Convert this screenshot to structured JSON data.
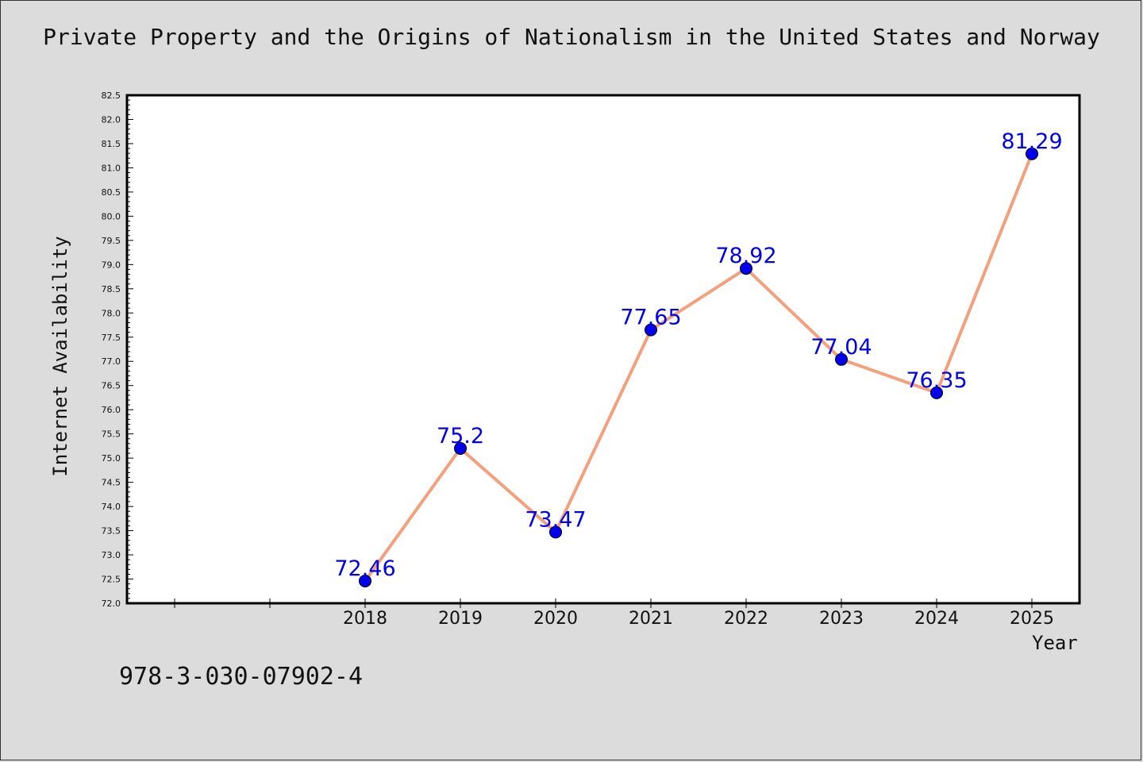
{
  "chart_data": {
    "type": "line",
    "title": "Private Property and the Origins of Nationalism in the United States and Norway",
    "xlabel": "Year",
    "ylabel": "Internet Availability",
    "categories": [
      "2018",
      "2019",
      "2020",
      "2021",
      "2022",
      "2023",
      "2024",
      "2025"
    ],
    "values": [
      72.46,
      75.2,
      73.47,
      77.65,
      78.92,
      77.04,
      76.35,
      81.29
    ],
    "data_labels": [
      "72.46",
      "75.2",
      "73.47",
      "77.65",
      "78.92",
      "77.04",
      "76.35",
      "81.29"
    ],
    "ylim": [
      72.0,
      82.5
    ],
    "yticks": [
      "72.0",
      "72.5",
      "73.0",
      "73.5",
      "74.0",
      "74.5",
      "75.0",
      "75.5",
      "76.0",
      "76.5",
      "77.0",
      "77.5",
      "78.0",
      "78.5",
      "79.0",
      "79.5",
      "80.0",
      "80.5",
      "81.0",
      "81.5",
      "82.0",
      "82.5"
    ],
    "line_color": "#f4a07c",
    "marker_color": "#0000ee",
    "label_color": "#0000ee",
    "grid": false,
    "legend": "none"
  },
  "footer": {
    "isbn": "978-3-030-07902-4"
  }
}
